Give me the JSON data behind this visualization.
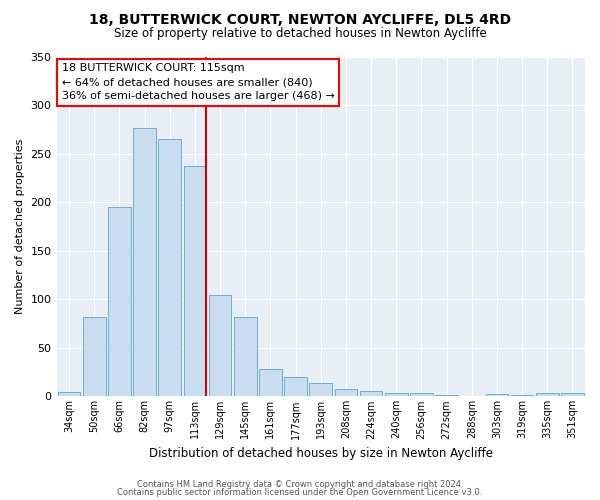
{
  "title": "18, BUTTERWICK COURT, NEWTON AYCLIFFE, DL5 4RD",
  "subtitle": "Size of property relative to detached houses in Newton Aycliffe",
  "xlabel": "Distribution of detached houses by size in Newton Aycliffe",
  "ylabel": "Number of detached properties",
  "bar_labels": [
    "34sqm",
    "50sqm",
    "66sqm",
    "82sqm",
    "97sqm",
    "113sqm",
    "129sqm",
    "145sqm",
    "161sqm",
    "177sqm",
    "193sqm",
    "208sqm",
    "224sqm",
    "240sqm",
    "256sqm",
    "272sqm",
    "288sqm",
    "303sqm",
    "319sqm",
    "335sqm",
    "351sqm"
  ],
  "bar_values": [
    5,
    82,
    195,
    276,
    265,
    237,
    104,
    82,
    28,
    20,
    14,
    8,
    6,
    3,
    3,
    1,
    0,
    2,
    1,
    3,
    3
  ],
  "bar_color": "#c8ddf0",
  "bar_edge_color": "#6baed6",
  "vline_x_index": 5,
  "vline_color": "#cc0000",
  "annotation_title": "18 BUTTERWICK COURT: 115sqm",
  "annotation_line1": "← 64% of detached houses are smaller (840)",
  "annotation_line2": "36% of semi-detached houses are larger (468) →",
  "ylim": [
    0,
    350
  ],
  "yticks": [
    0,
    50,
    100,
    150,
    200,
    250,
    300,
    350
  ],
  "footer1": "Contains HM Land Registry data © Crown copyright and database right 2024.",
  "footer2": "Contains public sector information licensed under the Open Government Licence v3.0.",
  "bg_color": "#ffffff",
  "plot_bg_color": "#e8eef5"
}
